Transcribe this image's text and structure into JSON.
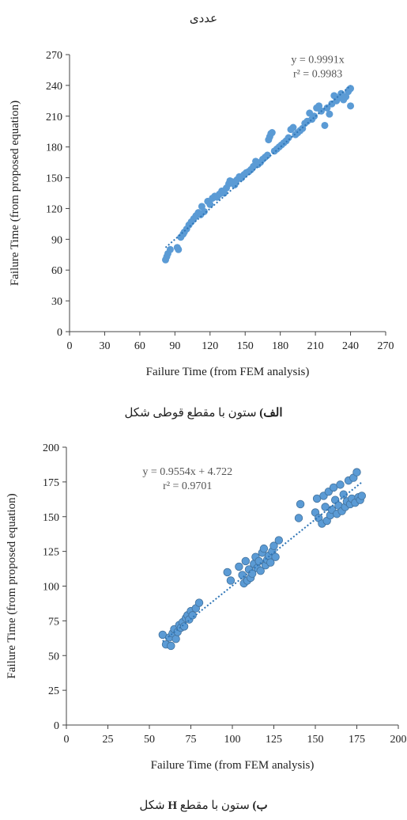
{
  "header": {
    "top_word": "عددی"
  },
  "captions": {
    "a_label": "الف)",
    "a_text": " ستون با مقطع قوطی شکل",
    "b_label": "ب)",
    "b_text_before": " ستون با مقطع ",
    "b_text_h": "H",
    "b_text_after": " شکل"
  },
  "colors": {
    "point": "#5b9bd5",
    "point_edge": "#41719c",
    "trend": "#2e75b6",
    "axis": "#444444"
  },
  "chart_data": [
    {
      "type": "scatter",
      "title": "",
      "xlabel": "Failure Time (from FEM analysis)",
      "ylabel": "Failure Time (from proposed equation)",
      "xlim": [
        0,
        270
      ],
      "ylim": [
        0,
        270
      ],
      "xticks": [
        0,
        30,
        60,
        90,
        120,
        150,
        180,
        210,
        240,
        270
      ],
      "yticks": [
        0,
        30,
        60,
        90,
        120,
        150,
        180,
        210,
        240,
        270
      ],
      "trendline": {
        "equation": "y = 0.9991x",
        "r2": "r² = 0.9983",
        "slope": 0.9991,
        "intercept": 0,
        "x_range": [
          82,
          240
        ],
        "style": "dotted"
      },
      "grid": false,
      "points": [
        [
          82,
          70
        ],
        [
          83,
          73
        ],
        [
          84,
          76
        ],
        [
          86,
          80
        ],
        [
          92,
          82
        ],
        [
          93,
          80
        ],
        [
          95,
          92
        ],
        [
          97,
          95
        ],
        [
          98,
          97
        ],
        [
          100,
          100
        ],
        [
          102,
          104
        ],
        [
          104,
          107
        ],
        [
          106,
          110
        ],
        [
          108,
          113
        ],
        [
          110,
          116
        ],
        [
          112,
          114
        ],
        [
          113,
          122
        ],
        [
          115,
          117
        ],
        [
          118,
          127
        ],
        [
          120,
          124
        ],
        [
          122,
          130
        ],
        [
          124,
          132
        ],
        [
          126,
          131
        ],
        [
          128,
          134
        ],
        [
          130,
          137
        ],
        [
          132,
          135
        ],
        [
          134,
          140
        ],
        [
          136,
          144
        ],
        [
          137,
          147
        ],
        [
          139,
          146
        ],
        [
          141,
          143
        ],
        [
          143,
          148
        ],
        [
          145,
          151
        ],
        [
          147,
          150
        ],
        [
          149,
          153
        ],
        [
          151,
          155
        ],
        [
          153,
          156
        ],
        [
          155,
          158
        ],
        [
          157,
          161
        ],
        [
          159,
          166
        ],
        [
          161,
          163
        ],
        [
          163,
          165
        ],
        [
          165,
          168
        ],
        [
          167,
          170
        ],
        [
          169,
          172
        ],
        [
          170,
          187
        ],
        [
          171,
          190
        ],
        [
          172,
          193
        ],
        [
          173,
          194
        ],
        [
          175,
          176
        ],
        [
          177,
          178
        ],
        [
          179,
          180
        ],
        [
          181,
          182
        ],
        [
          183,
          184
        ],
        [
          185,
          186
        ],
        [
          187,
          189
        ],
        [
          189,
          197
        ],
        [
          191,
          199
        ],
        [
          193,
          192
        ],
        [
          195,
          194
        ],
        [
          197,
          196
        ],
        [
          199,
          198
        ],
        [
          201,
          203
        ],
        [
          203,
          205
        ],
        [
          205,
          213
        ],
        [
          207,
          207
        ],
        [
          209,
          210
        ],
        [
          211,
          218
        ],
        [
          213,
          220
        ],
        [
          215,
          215
        ],
        [
          218,
          201
        ],
        [
          220,
          218
        ],
        [
          222,
          212
        ],
        [
          224,
          222
        ],
        [
          226,
          230
        ],
        [
          228,
          225
        ],
        [
          230,
          228
        ],
        [
          232,
          232
        ],
        [
          234,
          226
        ],
        [
          236,
          229
        ],
        [
          238,
          234
        ],
        [
          239,
          236
        ],
        [
          240,
          220
        ],
        [
          240,
          237
        ]
      ]
    },
    {
      "type": "scatter",
      "title": "",
      "xlabel": "Failure Time (from FEM analysis)",
      "ylabel": "Failure Time (from proposed equation)",
      "xlim": [
        0,
        200
      ],
      "ylim": [
        0,
        200
      ],
      "xticks": [
        0,
        25,
        50,
        75,
        100,
        125,
        150,
        175,
        200
      ],
      "yticks": [
        0,
        25,
        50,
        75,
        100,
        125,
        150,
        175,
        200
      ],
      "trendline": {
        "equation": "y = 0.9554x + 4.722",
        "r2": "r² = 0.9701",
        "slope": 0.9554,
        "intercept": 4.722,
        "x_range": [
          58,
          178
        ],
        "style": "dotted"
      },
      "grid": false,
      "points": [
        [
          58,
          65
        ],
        [
          60,
          58
        ],
        [
          62,
          63
        ],
        [
          63,
          57
        ],
        [
          64,
          66
        ],
        [
          65,
          69
        ],
        [
          66,
          62
        ],
        [
          67,
          67
        ],
        [
          68,
          72
        ],
        [
          69,
          70
        ],
        [
          70,
          74
        ],
        [
          71,
          71
        ],
        [
          72,
          77
        ],
        [
          73,
          79
        ],
        [
          74,
          76
        ],
        [
          75,
          82
        ],
        [
          76,
          79
        ],
        [
          78,
          84
        ],
        [
          80,
          88
        ],
        [
          97,
          110
        ],
        [
          99,
          104
        ],
        [
          104,
          114
        ],
        [
          106,
          108
        ],
        [
          107,
          102
        ],
        [
          108,
          118
        ],
        [
          109,
          104
        ],
        [
          110,
          112
        ],
        [
          111,
          106
        ],
        [
          112,
          109
        ],
        [
          113,
          116
        ],
        [
          114,
          121
        ],
        [
          115,
          113
        ],
        [
          116,
          118
        ],
        [
          117,
          111
        ],
        [
          118,
          124
        ],
        [
          119,
          127
        ],
        [
          120,
          115
        ],
        [
          121,
          119
        ],
        [
          122,
          122
        ],
        [
          123,
          117
        ],
        [
          124,
          125
        ],
        [
          125,
          129
        ],
        [
          126,
          121
        ],
        [
          128,
          133
        ],
        [
          140,
          149
        ],
        [
          141,
          159
        ],
        [
          150,
          153
        ],
        [
          151,
          163
        ],
        [
          152,
          149
        ],
        [
          154,
          145
        ],
        [
          155,
          165
        ],
        [
          156,
          157
        ],
        [
          157,
          147
        ],
        [
          158,
          168
        ],
        [
          159,
          151
        ],
        [
          160,
          155
        ],
        [
          161,
          171
        ],
        [
          162,
          162
        ],
        [
          163,
          152
        ],
        [
          164,
          158
        ],
        [
          165,
          173
        ],
        [
          166,
          154
        ],
        [
          167,
          166
        ],
        [
          168,
          157
        ],
        [
          169,
          161
        ],
        [
          170,
          176
        ],
        [
          171,
          159
        ],
        [
          172,
          163
        ],
        [
          173,
          178
        ],
        [
          174,
          160
        ],
        [
          175,
          182
        ],
        [
          176,
          164
        ],
        [
          177,
          162
        ],
        [
          178,
          165
        ]
      ]
    }
  ]
}
